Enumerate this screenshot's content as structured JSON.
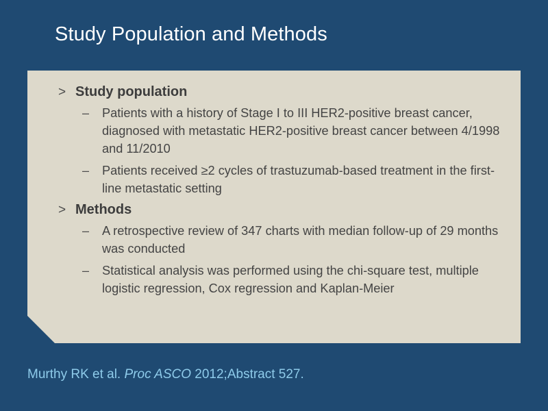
{
  "title": "Study Population and Methods",
  "sections": [
    {
      "marker": ">",
      "heading": "Study population",
      "items": [
        {
          "marker": "–",
          "text": "Patients with a history of Stage I to III HER2-positive breast cancer, diagnosed with metastatic HER2-positive breast cancer between 4/1998 and 11/2010"
        },
        {
          "marker": "–",
          "text": "Patients received ≥2 cycles of trastuzumab-based treatment in the first-line metastatic setting"
        }
      ]
    },
    {
      "marker": ">",
      "heading": "Methods",
      "items": [
        {
          "marker": "–",
          "text": "A retrospective review of 347 charts with median follow-up of 29 months was conducted"
        },
        {
          "marker": "–",
          "text": "Statistical analysis was performed using the chi-square test, multiple logistic regression, Cox regression and Kaplan-Meier"
        }
      ]
    }
  ],
  "citation": {
    "authors": "Murthy RK et al. ",
    "journal": "Proc ASCO",
    "details": " 2012;Abstract 527."
  },
  "colors": {
    "background": "#1f4a72",
    "panel": "#ddd9cb",
    "title_text": "#ffffff",
    "citation_text": "#8ecbea"
  }
}
